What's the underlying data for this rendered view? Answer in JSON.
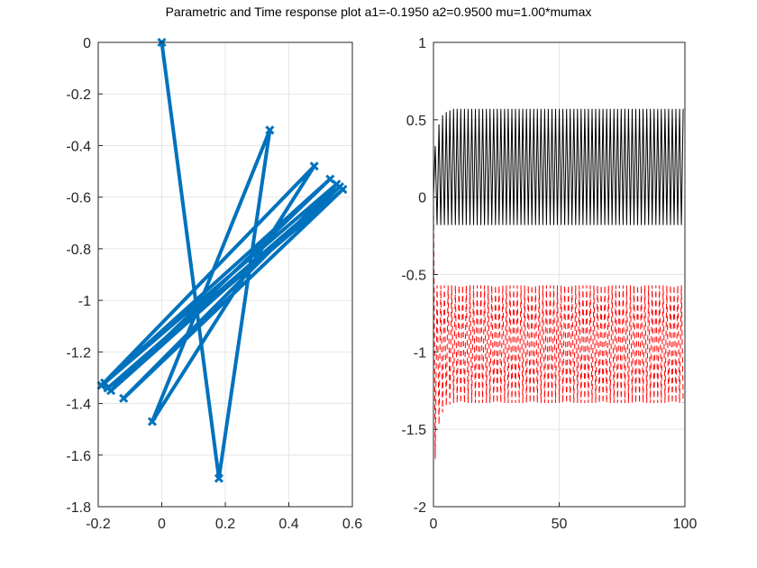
{
  "figure": {
    "title": "Parametric and Time response plot a1=-0.1950 a2=0.9500 mu=1.00*mumax"
  },
  "colors": {
    "parametric": "#0072bd",
    "response_1": "#000000",
    "response_2": "#ff0000",
    "grid": "#e6e6e6",
    "axis": "#262626"
  },
  "chart_data": [
    {
      "type": "line",
      "id": "parametric",
      "series": [
        {
          "marker": "x",
          "x": [
            0.0,
            0.18,
            0.34,
            -0.03,
            0.48,
            -0.19,
            0.53,
            -0.16,
            0.56,
            -0.17,
            0.57,
            -0.12,
            0.55,
            -0.18
          ],
          "y": [
            0.0,
            -1.69,
            -0.34,
            -1.47,
            -0.48,
            -1.33,
            -0.53,
            -1.35,
            -0.56,
            -1.34,
            -0.57,
            -1.38,
            -0.55,
            -1.32
          ]
        }
      ],
      "xlim": [
        -0.2,
        0.6
      ],
      "ylim": [
        -1.8,
        0
      ],
      "xticks": [
        "-0.2",
        "0",
        "0.2",
        "0.4",
        "0.6"
      ],
      "yticks": [
        "0",
        "-0.2",
        "-0.4",
        "-0.6",
        "-0.8",
        "-1",
        "-1.2",
        "-1.4",
        "-1.6",
        "-1.8"
      ],
      "grid": true
    },
    {
      "type": "line",
      "id": "time-response",
      "xlim": [
        0,
        100
      ],
      "ylim": [
        -2,
        1
      ],
      "xticks": [
        "0",
        "50",
        "100"
      ],
      "yticks": [
        "1",
        "0.5",
        "0",
        "-0.5",
        "-1",
        "-1.5",
        "-2"
      ],
      "grid": true,
      "series": [
        {
          "style": "solid",
          "oscillation": {
            "period": 1.45,
            "steady_min": -0.18,
            "steady_max": 0.57,
            "start": 0.0,
            "first_peaks": [
              0.33,
              0.47,
              0.53,
              0.55,
              0.56
            ]
          }
        },
        {
          "style": "dashed",
          "oscillation": {
            "period": 1.45,
            "steady_min": -1.33,
            "steady_max": -0.57,
            "start": 0.0,
            "first_troughs": [
              -1.69,
              -1.47,
              -1.39,
              -1.35,
              -1.34
            ]
          }
        }
      ]
    }
  ]
}
